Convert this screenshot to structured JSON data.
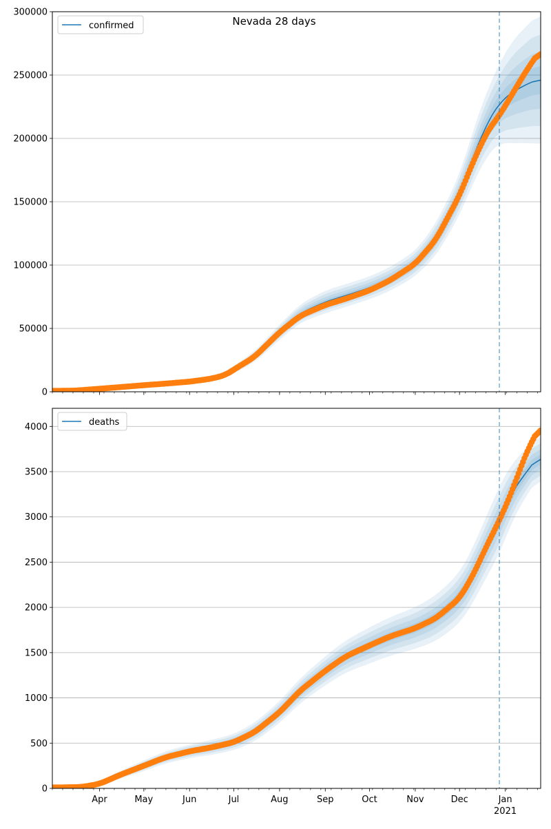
{
  "title": "Nevada 28 days",
  "colors": {
    "model": "#1f77b4",
    "observed": "#ff7f0e",
    "band": "#1f77b4",
    "grid": "#b0b0b0",
    "forecast_line": "#1f77b4"
  },
  "chart_data": [
    {
      "type": "line",
      "legend": "confirmed",
      "legend_location": "top-left",
      "grid": "horizontal",
      "x_range": [
        "2020-02-29",
        "2021-01-25"
      ],
      "ylim": [
        0,
        300000
      ],
      "yticks": [
        0,
        50000,
        100000,
        150000,
        200000,
        250000,
        300000
      ],
      "ytick_labels": [
        "0",
        "50000",
        "100000",
        "150000",
        "200000",
        "250000",
        "300000"
      ],
      "forecast_start": "2020-12-28",
      "model": {
        "x": [
          "2020-02-29",
          "2020-03-15",
          "2020-04-01",
          "2020-04-15",
          "2020-05-01",
          "2020-05-15",
          "2020-06-01",
          "2020-06-15",
          "2020-06-25",
          "2020-07-01",
          "2020-07-15",
          "2020-08-01",
          "2020-08-15",
          "2020-09-01",
          "2020-09-15",
          "2020-10-01",
          "2020-10-15",
          "2020-11-01",
          "2020-11-15",
          "2020-12-01",
          "2020-12-10",
          "2020-12-20",
          "2020-12-28",
          "2021-01-05",
          "2021-01-15",
          "2021-01-25"
        ],
        "y": [
          800,
          900,
          2400,
          3700,
          5200,
          6400,
          8000,
          10200,
          13000,
          17500,
          27500,
          47000,
          62000,
          71000,
          76000,
          82000,
          89000,
          101000,
          120000,
          155000,
          185000,
          213000,
          228000,
          236000,
          242500,
          247500
        ]
      },
      "band_half_width": {
        "x": [
          "2020-02-29",
          "2020-06-25",
          "2020-08-01",
          "2020-09-01",
          "2020-10-01",
          "2020-11-01",
          "2020-12-01",
          "2020-12-20",
          "2020-12-28",
          "2021-01-05",
          "2021-01-15",
          "2021-01-25"
        ],
        "y": [
          800,
          2500,
          6000,
          9000,
          9000,
          10000,
          16000,
          26000,
          31000,
          40000,
          46000,
          52000
        ]
      },
      "observed": {
        "x": [
          "2020-02-29",
          "2020-03-15",
          "2020-04-01",
          "2020-04-15",
          "2020-05-01",
          "2020-05-15",
          "2020-06-01",
          "2020-06-15",
          "2020-06-25",
          "2020-07-01",
          "2020-07-15",
          "2020-08-01",
          "2020-08-15",
          "2020-09-01",
          "2020-09-15",
          "2020-10-01",
          "2020-10-15",
          "2020-11-01",
          "2020-11-15",
          "2020-12-01",
          "2020-12-10",
          "2020-12-20",
          "2020-12-28",
          "2021-01-05",
          "2021-01-15",
          "2021-01-25"
        ],
        "y": [
          800,
          900,
          2400,
          3700,
          5200,
          6400,
          8000,
          10200,
          13000,
          17500,
          27500,
          47000,
          60000,
          68500,
          73500,
          80000,
          88000,
          101000,
          120000,
          155000,
          181000,
          206000,
          218000,
          233500,
          253000,
          270000
        ]
      }
    },
    {
      "type": "line",
      "legend": "deaths",
      "legend_location": "top-left",
      "grid": "horizontal",
      "x_range": [
        "2020-02-29",
        "2021-01-25"
      ],
      "ylim": [
        0,
        4200
      ],
      "yticks": [
        0,
        500,
        1000,
        1500,
        2000,
        2500,
        3000,
        3500,
        4000
      ],
      "ytick_labels": [
        "0",
        "500",
        "1000",
        "1500",
        "2000",
        "2500",
        "3000",
        "3500",
        "4000"
      ],
      "xtick_labels": [
        "Apr",
        "May",
        "Jun",
        "Jul",
        "Aug",
        "Sep",
        "Oct",
        "Nov",
        "Dec",
        "Jan"
      ],
      "xtick_dates": [
        "2020-04-01",
        "2020-05-01",
        "2020-06-01",
        "2020-07-01",
        "2020-08-01",
        "2020-09-01",
        "2020-10-01",
        "2020-11-01",
        "2020-12-01",
        "2021-01-01"
      ],
      "year_label": "2021",
      "forecast_start": "2020-12-28",
      "model": {
        "x": [
          "2020-02-29",
          "2020-03-20",
          "2020-04-01",
          "2020-04-15",
          "2020-05-01",
          "2020-05-15",
          "2020-06-01",
          "2020-06-15",
          "2020-07-01",
          "2020-07-15",
          "2020-08-01",
          "2020-08-15",
          "2020-09-01",
          "2020-09-15",
          "2020-10-01",
          "2020-10-15",
          "2020-11-01",
          "2020-11-15",
          "2020-12-01",
          "2020-12-10",
          "2020-12-20",
          "2020-12-28",
          "2021-01-05",
          "2021-01-15",
          "2021-01-25"
        ],
        "y": [
          10,
          15,
          50,
          150,
          250,
          340,
          410,
          450,
          510,
          620,
          840,
          1080,
          1300,
          1460,
          1580,
          1680,
          1770,
          1880,
          2100,
          2350,
          2700,
          2960,
          3260,
          3490,
          3700
        ]
      },
      "band_half_width": {
        "x": [
          "2020-02-29",
          "2020-04-01",
          "2020-05-01",
          "2020-06-01",
          "2020-07-01",
          "2020-08-01",
          "2020-09-01",
          "2020-10-01",
          "2020-11-01",
          "2020-12-01",
          "2020-12-20",
          "2020-12-28",
          "2021-01-15",
          "2021-01-25"
        ],
        "y": [
          10,
          30,
          60,
          75,
          90,
          120,
          160,
          200,
          230,
          280,
          340,
          380,
          260,
          240
        ]
      },
      "observed": {
        "x": [
          "2020-02-29",
          "2020-03-20",
          "2020-04-01",
          "2020-04-15",
          "2020-05-01",
          "2020-05-15",
          "2020-06-01",
          "2020-06-15",
          "2020-07-01",
          "2020-07-15",
          "2020-08-01",
          "2020-08-15",
          "2020-09-01",
          "2020-09-15",
          "2020-10-01",
          "2020-10-15",
          "2020-11-01",
          "2020-11-15",
          "2020-12-01",
          "2020-12-10",
          "2020-12-20",
          "2020-12-28",
          "2021-01-05",
          "2021-01-15",
          "2021-01-25"
        ],
        "y": [
          10,
          15,
          50,
          150,
          250,
          340,
          410,
          450,
          510,
          620,
          840,
          1080,
          1300,
          1460,
          1580,
          1680,
          1770,
          1880,
          2100,
          2350,
          2700,
          2960,
          3260,
          3700,
          4020
        ]
      }
    }
  ]
}
